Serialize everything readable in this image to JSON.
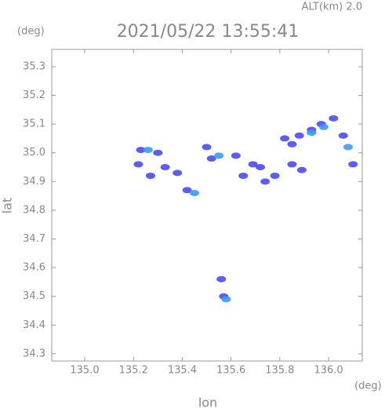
{
  "chart_data": {
    "type": "scatter",
    "title": "2021/05/22 13:55:41",
    "altitude_label": "ALT(km) 2.0",
    "y_unit": "(deg)",
    "x_unit": "(deg)",
    "xlabel": "lon",
    "ylabel": "lat",
    "xlim": [
      134.865,
      136.138
    ],
    "ylim": [
      34.275,
      35.36
    ],
    "xticks": [
      {
        "value": 135,
        "label": "135.0"
      },
      135.2,
      135.4,
      135.6,
      135.8,
      {
        "value": 136,
        "label": "136.0"
      }
    ],
    "yticks": [
      34.3,
      34.4,
      34.5,
      34.6,
      34.7,
      34.8,
      34.9,
      {
        "value": 35,
        "label": "35.0"
      },
      35.1,
      35.2,
      35.3
    ],
    "series": [
      {
        "color": "#4b4bf2",
        "x": [
          135.23,
          135.3,
          135.22,
          135.27,
          135.33,
          135.42,
          135.5,
          135.52,
          135.62,
          135.69,
          135.72,
          135.65,
          135.78,
          135.85,
          135.89,
          135.82,
          135.88,
          135.93,
          135.97,
          136.02,
          136.06,
          136.1,
          135.57,
          135.56,
          135.85,
          135.74,
          135.38
        ],
        "values": [
          35.01,
          35.0,
          34.96,
          34.92,
          34.95,
          34.87,
          35.02,
          34.98,
          34.99,
          34.96,
          34.95,
          34.92,
          34.92,
          34.96,
          34.94,
          35.05,
          35.06,
          35.08,
          35.1,
          35.12,
          35.06,
          34.96,
          34.5,
          34.56,
          35.03,
          34.9,
          34.93
        ]
      },
      {
        "color": "#3c9af0",
        "x": [
          135.45,
          135.26,
          135.93,
          135.98,
          136.08,
          135.55,
          135.58
        ],
        "values": [
          34.86,
          35.01,
          35.07,
          35.09,
          35.02,
          34.99,
          34.49
        ]
      }
    ]
  }
}
